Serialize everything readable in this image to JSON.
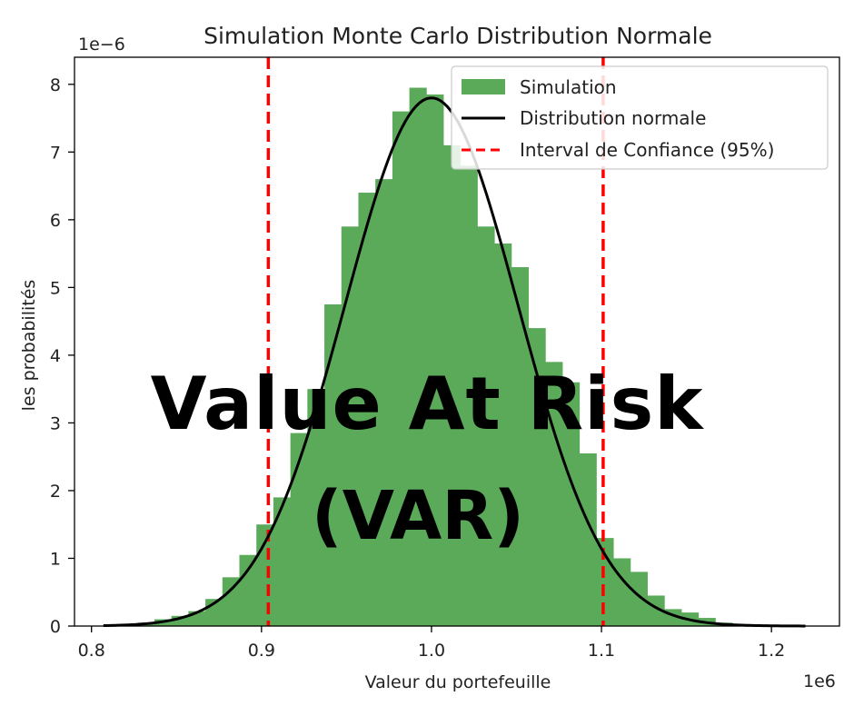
{
  "overlay": {
    "line1": "Value At Risk",
    "line2": "(VAR)"
  },
  "chart_data": {
    "type": "bar",
    "title": "Simulation Monte Carlo Distribution Normale",
    "xlabel": "Valeur du portefeuille",
    "ylabel": "les probabilités",
    "x_offset_label": "1e6",
    "y_offset_label": "1e−6",
    "xlim": [
      0.79,
      1.24
    ],
    "ylim": [
      0,
      8.4
    ],
    "x_ticks": [
      0.8,
      0.9,
      1.0,
      1.1,
      1.2
    ],
    "x_tick_labels": [
      "0.8",
      "0.9",
      "1.0",
      "1.1",
      "1.2"
    ],
    "y_ticks": [
      0,
      1,
      2,
      3,
      4,
      5,
      6,
      7,
      8
    ],
    "y_tick_labels": [
      "0",
      "1",
      "2",
      "3",
      "4",
      "5",
      "6",
      "7",
      "8"
    ],
    "grid": false,
    "legend_position": "top-right",
    "colors": {
      "histogram": "#5aaa5a",
      "normal_curve": "#000000",
      "confidence_lines": "#ff0000"
    },
    "histogram": {
      "name": "Simulation",
      "bin_edges": [
        0.807,
        0.817,
        0.827,
        0.837,
        0.847,
        0.857,
        0.867,
        0.877,
        0.887,
        0.897,
        0.907,
        0.917,
        0.927,
        0.937,
        0.947,
        0.957,
        0.967,
        0.977,
        0.987,
        0.997,
        1.007,
        1.017,
        1.027,
        1.037,
        1.047,
        1.057,
        1.067,
        1.077,
        1.087,
        1.097,
        1.107,
        1.117,
        1.127,
        1.137,
        1.147,
        1.157,
        1.167,
        1.177,
        1.187,
        1.197,
        1.207,
        1.217
      ],
      "densities": [
        0.01,
        0.02,
        0.05,
        0.1,
        0.15,
        0.22,
        0.4,
        0.72,
        1.05,
        1.5,
        1.9,
        2.85,
        3.5,
        4.75,
        5.9,
        6.4,
        6.6,
        7.6,
        7.95,
        7.85,
        7.1,
        6.8,
        5.9,
        5.65,
        5.3,
        4.4,
        3.9,
        3.6,
        2.55,
        1.3,
        1.0,
        0.8,
        0.45,
        0.25,
        0.2,
        0.12,
        0.05,
        0.03,
        0.01,
        0.01,
        0.005
      ]
    },
    "normal_curve": {
      "name": "Distribution normale",
      "mean": 1.0,
      "std": 0.051,
      "x_range": [
        0.807,
        1.22
      ]
    },
    "confidence_interval": {
      "name": "Interval de Confiance (95%)",
      "lower": 0.904,
      "upper": 1.101
    },
    "legend": [
      "Simulation",
      "Distribution normale",
      "Interval de Confiance (95%)"
    ]
  }
}
